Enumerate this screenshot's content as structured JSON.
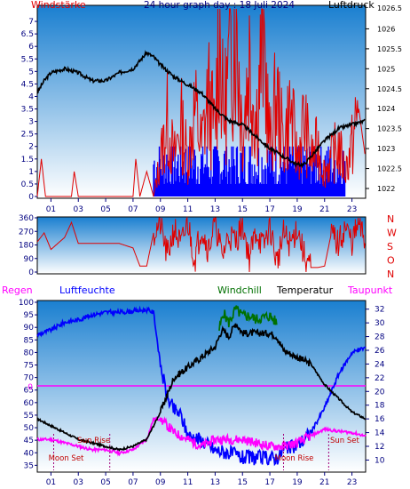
{
  "title": "24 hour graph day : 18 Juli 2024",
  "colors": {
    "red": "#e00000",
    "blue": "#0000ff",
    "black": "#000000",
    "green": "#007000",
    "magenta": "#ff00ff",
    "tick": "#000080",
    "sun": "#c00000",
    "moon": "#a0007a",
    "grad_top": "#1a7fd0",
    "grad_bottom": "#ffffff"
  },
  "chart_data": [
    {
      "type": "line",
      "name": "wind-pressure",
      "title": "24 hour graph day : 18 Juli 2024",
      "left_label": "Windstärke",
      "right_label": "Luftdruck",
      "x_ticks": [
        "01",
        "03",
        "05",
        "07",
        "09",
        "11",
        "13",
        "15",
        "17",
        "19",
        "21",
        "23"
      ],
      "x_range": [
        0,
        24
      ],
      "wind_axis": [
        0,
        7.5
      ],
      "wind_ticks": [
        "0",
        "0.5",
        "1",
        "1.5",
        "2",
        "2.5",
        "3",
        "3.5",
        "4",
        "4.5",
        "5",
        "5.5",
        "6",
        "6.5",
        "7"
      ],
      "pressure_axis": [
        1021.8,
        1026.5
      ],
      "pressure_ticks": [
        "1022",
        "1022.5",
        "1023",
        "1023.5",
        "1024",
        "1024.5",
        "1025",
        "1025.5",
        "1026"
      ],
      "pressure_top_label": "1026.5",
      "pressure": [
        [
          0,
          1024.4
        ],
        [
          0.5,
          1024.7
        ],
        [
          1,
          1024.9
        ],
        [
          2,
          1025.0
        ],
        [
          3,
          1024.9
        ],
        [
          4,
          1024.7
        ],
        [
          5,
          1024.7
        ],
        [
          6,
          1024.9
        ],
        [
          7,
          1025.0
        ],
        [
          7.5,
          1025.2
        ],
        [
          8,
          1025.4
        ],
        [
          8.5,
          1025.3
        ],
        [
          9,
          1025.1
        ],
        [
          10,
          1024.8
        ],
        [
          11,
          1024.6
        ],
        [
          12,
          1024.4
        ],
        [
          13,
          1024.0
        ],
        [
          14,
          1023.7
        ],
        [
          15,
          1023.6
        ],
        [
          16,
          1023.3
        ],
        [
          17,
          1023.0
        ],
        [
          18,
          1022.8
        ],
        [
          19,
          1022.6
        ],
        [
          19.5,
          1022.6
        ],
        [
          20,
          1022.8
        ],
        [
          21,
          1023.2
        ],
        [
          22,
          1023.5
        ],
        [
          23,
          1023.6
        ],
        [
          24,
          1023.7
        ]
      ],
      "wind_gust": [
        [
          0,
          0
        ],
        [
          0.3,
          1.5
        ],
        [
          0.6,
          0
        ],
        [
          2.5,
          0
        ],
        [
          2.7,
          1.0
        ],
        [
          3.0,
          0
        ],
        [
          7.0,
          0
        ],
        [
          7.2,
          1.5
        ],
        [
          7.5,
          0
        ],
        [
          8.0,
          1.0
        ],
        [
          8.5,
          0
        ],
        [
          9,
          1.5
        ],
        [
          9.5,
          3.0
        ],
        [
          10,
          1.5
        ],
        [
          10.5,
          3.0
        ],
        [
          11,
          1.5
        ],
        [
          11.5,
          3.5
        ],
        [
          12,
          2.0
        ],
        [
          12.5,
          4.0
        ],
        [
          13,
          2.5
        ],
        [
          13.3,
          7.5
        ],
        [
          13.6,
          3.0
        ],
        [
          14,
          5.0
        ],
        [
          14.5,
          7.5
        ],
        [
          15,
          2.5
        ],
        [
          15.5,
          5.5
        ],
        [
          16,
          3.0
        ],
        [
          16.5,
          6.5
        ],
        [
          17,
          2.0
        ],
        [
          17.5,
          4.0
        ],
        [
          18,
          2.0
        ],
        [
          18.5,
          3.5
        ],
        [
          19,
          1.5
        ],
        [
          19.5,
          3.0
        ],
        [
          20,
          1.5
        ],
        [
          20.5,
          2.0
        ],
        [
          21,
          1.0
        ],
        [
          22,
          2.0
        ],
        [
          22.5,
          1.0
        ],
        [
          23,
          2.0
        ],
        [
          23.5,
          3.5
        ],
        [
          24,
          1.5
        ]
      ],
      "wind_avg_span": [
        8.5,
        22.5
      ]
    },
    {
      "type": "line",
      "name": "wind-direction",
      "y_ticks": [
        "0",
        "90",
        "180",
        "270",
        "360"
      ],
      "y_range": [
        0,
        360
      ],
      "right_labels": [
        "N",
        "W",
        "S",
        "O",
        "N"
      ],
      "direction": [
        [
          0,
          200
        ],
        [
          0.5,
          260
        ],
        [
          1,
          150
        ],
        [
          2,
          230
        ],
        [
          2.5,
          330
        ],
        [
          3,
          190
        ],
        [
          4,
          190
        ],
        [
          5,
          190
        ],
        [
          6,
          190
        ],
        [
          7,
          160
        ],
        [
          7.5,
          40
        ],
        [
          8,
          40
        ],
        [
          8.5,
          260
        ],
        [
          9,
          320
        ],
        [
          9.5,
          100
        ],
        [
          10,
          290
        ],
        [
          10.5,
          170
        ],
        [
          11,
          330
        ],
        [
          11.5,
          80
        ],
        [
          12,
          300
        ],
        [
          12.5,
          150
        ],
        [
          13,
          340
        ],
        [
          13.5,
          100
        ],
        [
          14,
          250
        ],
        [
          14.5,
          200
        ],
        [
          15,
          330
        ],
        [
          15.5,
          90
        ],
        [
          16,
          280
        ],
        [
          16.5,
          160
        ],
        [
          17,
          310
        ],
        [
          17.5,
          60
        ],
        [
          18,
          250
        ],
        [
          18.5,
          180
        ],
        [
          19,
          300
        ],
        [
          19.5,
          110
        ],
        [
          20,
          30
        ],
        [
          20.5,
          30
        ],
        [
          21,
          40
        ],
        [
          21.5,
          260
        ],
        [
          22,
          180
        ],
        [
          22.5,
          300
        ],
        [
          23,
          200
        ],
        [
          23.5,
          320
        ],
        [
          24,
          190
        ]
      ]
    },
    {
      "type": "line",
      "name": "temperature-humidity",
      "legend": [
        "Regen",
        "Luftfeuchte",
        "Windchill",
        "Temperatur",
        "Taupunkt"
      ],
      "left_ticks": [
        "35",
        "40",
        "45",
        "50",
        "55",
        "60",
        "65",
        "70",
        "75",
        "80",
        "85",
        "90",
        "95",
        "100"
      ],
      "left_range": [
        33,
        100
      ],
      "rain_axis_label": "0",
      "right_ticks": [
        "10",
        "12",
        "14",
        "16",
        "18",
        "20",
        "22",
        "24",
        "26",
        "28",
        "30",
        "32"
      ],
      "right_range": [
        8.5,
        33
      ],
      "humidity": [
        [
          0,
          87
        ],
        [
          1,
          89
        ],
        [
          2,
          92
        ],
        [
          3,
          93
        ],
        [
          4,
          95
        ],
        [
          5,
          96
        ],
        [
          6,
          96
        ],
        [
          7,
          96.5
        ],
        [
          8,
          97
        ],
        [
          8.5,
          96
        ],
        [
          9,
          75
        ],
        [
          9.5,
          62
        ],
        [
          10,
          57
        ],
        [
          10.5,
          55
        ],
        [
          11,
          47
        ],
        [
          12,
          45
        ],
        [
          13,
          41
        ],
        [
          14,
          40
        ],
        [
          15,
          38
        ],
        [
          16,
          38
        ],
        [
          17,
          38
        ],
        [
          17.5,
          38
        ],
        [
          18,
          41
        ],
        [
          19,
          43
        ],
        [
          20,
          48
        ],
        [
          21,
          58
        ],
        [
          22,
          71
        ],
        [
          23,
          80
        ],
        [
          24,
          82
        ]
      ],
      "temperature": [
        [
          0,
          16
        ],
        [
          0.5,
          15.5
        ],
        [
          1,
          15
        ],
        [
          2,
          14
        ],
        [
          3,
          13
        ],
        [
          4,
          12.5
        ],
        [
          5,
          12
        ],
        [
          6,
          11.5
        ],
        [
          7,
          12
        ],
        [
          8,
          13
        ],
        [
          9,
          17
        ],
        [
          10,
          22
        ],
        [
          11,
          23.5
        ],
        [
          12,
          25
        ],
        [
          13,
          26.5
        ],
        [
          13.5,
          29
        ],
        [
          14,
          28
        ],
        [
          14.5,
          30
        ],
        [
          15,
          28.5
        ],
        [
          16,
          28.5
        ],
        [
          17,
          28.5
        ],
        [
          17.5,
          28
        ],
        [
          18,
          26
        ],
        [
          19,
          25
        ],
        [
          20,
          24
        ],
        [
          21,
          21
        ],
        [
          22,
          19
        ],
        [
          23,
          17
        ],
        [
          24,
          16
        ]
      ],
      "windchill": [
        [
          13.3,
          29
        ],
        [
          13.6,
          31.5
        ],
        [
          14,
          30
        ],
        [
          14.5,
          32
        ],
        [
          15,
          31
        ],
        [
          15.5,
          31
        ],
        [
          16,
          30.5
        ],
        [
          17,
          31
        ],
        [
          17.5,
          30
        ]
      ],
      "dewpoint": [
        [
          0,
          13
        ],
        [
          1,
          13
        ],
        [
          2,
          12.5
        ],
        [
          3,
          12
        ],
        [
          4,
          11.5
        ],
        [
          5,
          11.5
        ],
        [
          6,
          11
        ],
        [
          7,
          11.5
        ],
        [
          8,
          13
        ],
        [
          8.5,
          16
        ],
        [
          9,
          16
        ],
        [
          10,
          14
        ],
        [
          11,
          13
        ],
        [
          12,
          12
        ],
        [
          13,
          13
        ],
        [
          14,
          13
        ],
        [
          15,
          13
        ],
        [
          16,
          12.5
        ],
        [
          17,
          12
        ],
        [
          17.5,
          12
        ],
        [
          18,
          12
        ],
        [
          19,
          12.5
        ],
        [
          20,
          13.5
        ],
        [
          21,
          14.5
        ],
        [
          22,
          14.2
        ],
        [
          23,
          14
        ],
        [
          24,
          13.5
        ]
      ],
      "rain_zero": 0,
      "annotations": [
        {
          "label": "Sun Rise",
          "hour": 5.3
        },
        {
          "label": "Moon Set",
          "hour": 1.2
        },
        {
          "label": "Moon Rise",
          "hour": 18.0
        },
        {
          "label": "Sun Set",
          "hour": 21.3
        }
      ]
    }
  ]
}
